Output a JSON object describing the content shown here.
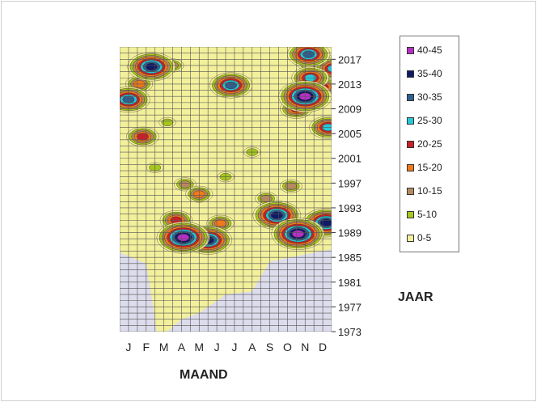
{
  "chart_data": {
    "type": "heatmap",
    "title": "",
    "xlabel": "MAAND",
    "ylabel": "JAAR",
    "x_tick_labels": [
      "J",
      "F",
      "M",
      "A",
      "M",
      "J",
      "J",
      "A",
      "S",
      "O",
      "N",
      "D"
    ],
    "y_tick_labels": [
      "2017",
      "2013",
      "2009",
      "2005",
      "2001",
      "1997",
      "1993",
      "1989",
      "1985",
      "1981",
      "1977",
      "1973"
    ],
    "year_range": [
      1973,
      2019
    ],
    "legend": {
      "placement": "right",
      "items": [
        {
          "label": "40-45",
          "color": "#b72ec7"
        },
        {
          "label": "35-40",
          "color": "#101a66"
        },
        {
          "label": "30-35",
          "color": "#2f5f8f"
        },
        {
          "label": "25-30",
          "color": "#25c8d8"
        },
        {
          "label": "20-25",
          "color": "#c8202a"
        },
        {
          "label": "15-20",
          "color": "#f07a1a"
        },
        {
          "label": "10-15",
          "color": "#b58a60"
        },
        {
          "label": "5-10",
          "color": "#a6c81e"
        },
        {
          "label": "0-5",
          "color": "#f3f09c"
        }
      ]
    },
    "grid": true,
    "hotspots": [
      {
        "month": 2.3,
        "year": 2015.8,
        "value": 37
      },
      {
        "month": 1.0,
        "year": 2010.5,
        "value": 33
      },
      {
        "month": 1.8,
        "year": 2004.5,
        "value": 23
      },
      {
        "month": 6.8,
        "year": 2012.8,
        "value": 33
      },
      {
        "month": 11.2,
        "year": 2017.8,
        "value": 34
      },
      {
        "month": 11.6,
        "year": 2016.5,
        "value": 27
      },
      {
        "month": 12.6,
        "year": 2015.5,
        "value": 28
      },
      {
        "month": 11.0,
        "year": 2011.0,
        "value": 41
      },
      {
        "month": 11.3,
        "year": 2014.0,
        "value": 29
      },
      {
        "month": 12.3,
        "year": 2006.0,
        "value": 27
      },
      {
        "month": 12.0,
        "year": 2012.5,
        "value": 24
      },
      {
        "month": 10.5,
        "year": 2009.0,
        "value": 21
      },
      {
        "month": 4.1,
        "year": 1988.2,
        "value": 43
      },
      {
        "month": 5.5,
        "year": 1987.8,
        "value": 35
      },
      {
        "month": 9.4,
        "year": 1991.8,
        "value": 36
      },
      {
        "month": 10.6,
        "year": 1988.8,
        "value": 41
      },
      {
        "month": 12.2,
        "year": 1990.6,
        "value": 38
      },
      {
        "month": 3.7,
        "year": 1991.0,
        "value": 20
      },
      {
        "month": 6.2,
        "year": 1990.5,
        "value": 18
      },
      {
        "month": 5.0,
        "year": 1995.2,
        "value": 15
      },
      {
        "month": 4.2,
        "year": 1996.8,
        "value": 12
      },
      {
        "month": 8.8,
        "year": 1994.5,
        "value": 14
      },
      {
        "month": 3.2,
        "year": 2006.8,
        "value": 9
      },
      {
        "month": 8.0,
        "year": 2002.0,
        "value": 7
      },
      {
        "month": 6.5,
        "year": 1998.0,
        "value": 9
      },
      {
        "month": 2.5,
        "year": 1999.5,
        "value": 8
      },
      {
        "month": 10.2,
        "year": 1996.5,
        "value": 12
      },
      {
        "month": 1.6,
        "year": 2013.0,
        "value": 19
      },
      {
        "month": 3.5,
        "year": 2016.0,
        "value": 14
      }
    ]
  }
}
